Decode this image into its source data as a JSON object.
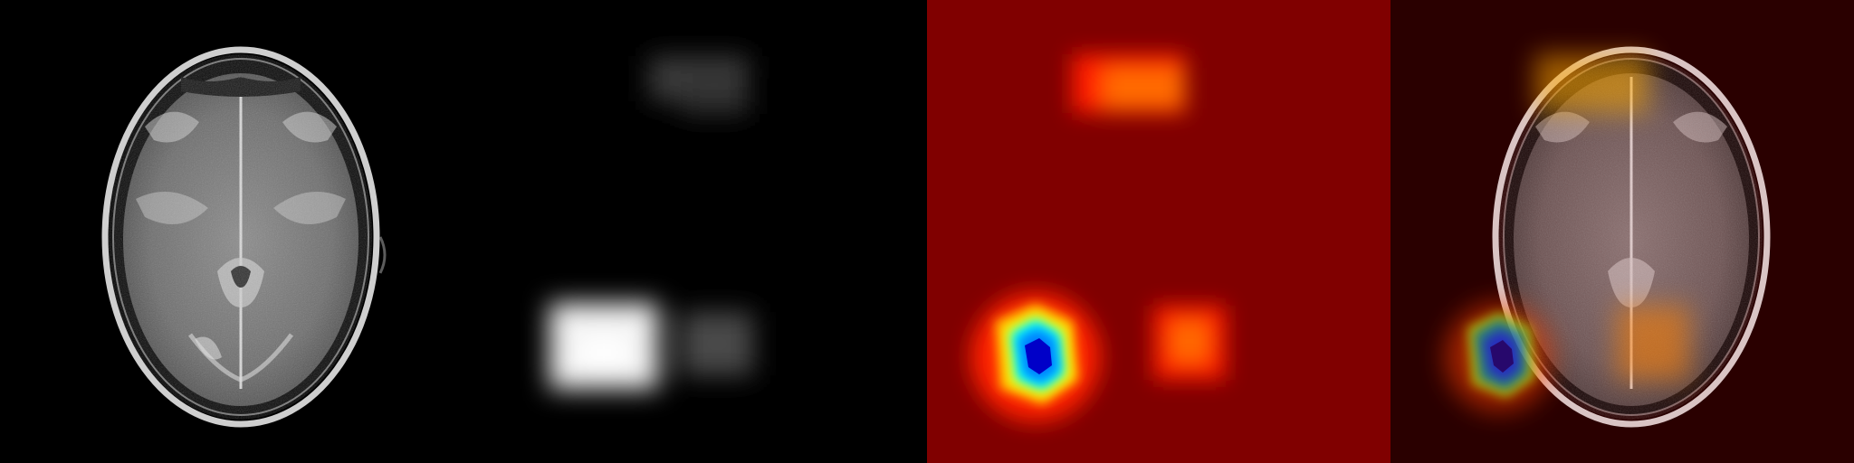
{
  "figure": {
    "panels": [
      {
        "id": "mri-slice",
        "kind": "grayscale-mri",
        "background": "#000000"
      },
      {
        "id": "saliency-grayscale",
        "kind": "grayscale-heatmap",
        "background": "#000000"
      },
      {
        "id": "saliency-jet",
        "kind": "jet-colormap-heatmap",
        "background": "#7f0000"
      },
      {
        "id": "overlay",
        "kind": "heatmap-overlay-on-mri",
        "background": "#2a0000"
      }
    ],
    "colormap": [
      "#00007f",
      "#0000ff",
      "#00ffff",
      "#ffff00",
      "#ff0000",
      "#7f0000"
    ]
  }
}
